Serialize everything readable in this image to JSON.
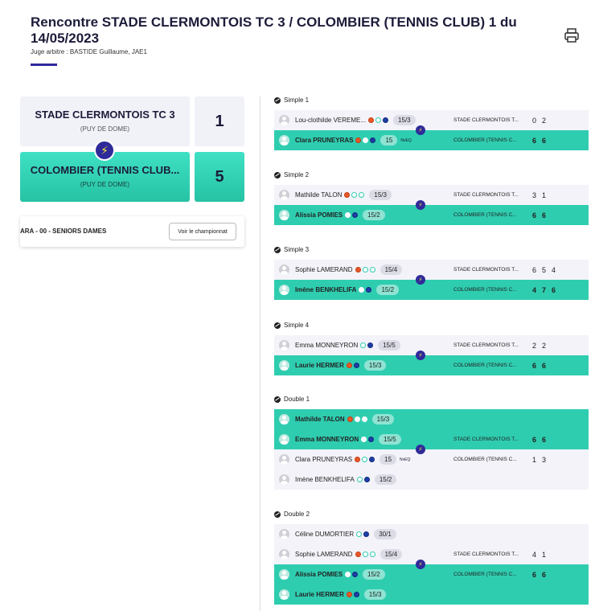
{
  "header": {
    "title": "Rencontre STADE CLERMONTOIS TC 3 / COLOMBIER (TENNIS CLUB) 1 du 14/05/2023",
    "subtitle": "Juge arbitre : BASTIDE Guillaume, JAE1"
  },
  "teams": {
    "home": {
      "name": "STADE CLERMONTOIS TC 3",
      "region": "(PUY DE DOME)",
      "score": "1"
    },
    "away": {
      "name": "COLOMBIER (TENNIS CLUB...",
      "region": "(PUY DE DOME)",
      "score": "5"
    }
  },
  "championship": {
    "label": "ARA - 00 - SENIORS DAMES",
    "button": "Voir le championnat"
  },
  "icons": {
    "print": "printer-icon",
    "winner": "lightning-bolt-icon",
    "sport": "tennis-ball-icon"
  },
  "colors": {
    "accent": "#2fcdb0",
    "brand": "#2f2a9a",
    "bolt": "#f5e43a"
  },
  "matches": [
    {
      "label": "Simple 1",
      "rows": [
        {
          "name": "Lou-clothilde VEREME...",
          "icons": [
            "fire",
            "ring",
            "blue"
          ],
          "rank": "15/3",
          "club": "STADE CLERMONTOIS T...",
          "sets": [
            "0",
            "2"
          ],
          "win": false,
          "extra": ""
        },
        {
          "name": "Clara PRUNEYRAS",
          "icons": [
            "fire",
            "ring",
            "blue"
          ],
          "rank": "15",
          "club": "COLOMBIER (TENNIS C...",
          "sets": [
            "6",
            "6"
          ],
          "win": true,
          "extra": "NvEQ"
        }
      ]
    },
    {
      "label": "Simple 2",
      "rows": [
        {
          "name": "Mathilde TALON",
          "icons": [
            "fire",
            "ring",
            "ring"
          ],
          "rank": "15/3",
          "club": "STADE CLERMONTOIS T...",
          "sets": [
            "3",
            "1"
          ],
          "win": false,
          "extra": ""
        },
        {
          "name": "Alissia POMIES",
          "icons": [
            "ring",
            "blue"
          ],
          "rank": "15/2",
          "club": "COLOMBIER (TENNIS C...",
          "sets": [
            "6",
            "6"
          ],
          "win": true,
          "extra": ""
        }
      ]
    },
    {
      "label": "Simple 3",
      "rows": [
        {
          "name": "Sophie LAMERAND",
          "icons": [
            "fire",
            "ring",
            "ring"
          ],
          "rank": "15/4",
          "club": "STADE CLERMONTOIS T...",
          "sets": [
            "6",
            "5",
            "4"
          ],
          "win": false,
          "extra": ""
        },
        {
          "name": "Imène BENKHELIFA",
          "icons": [
            "ring",
            "blue"
          ],
          "rank": "15/2",
          "club": "COLOMBIER (TENNIS C...",
          "sets": [
            "4",
            "7",
            "6"
          ],
          "win": true,
          "extra": ""
        }
      ]
    },
    {
      "label": "Simple 4",
      "rows": [
        {
          "name": "Emma MONNEYRON",
          "icons": [
            "ring",
            "blue"
          ],
          "rank": "15/5",
          "club": "STADE CLERMONTOIS T...",
          "sets": [
            "2",
            "2"
          ],
          "win": false,
          "extra": ""
        },
        {
          "name": "Laurie HERMER",
          "icons": [
            "fire",
            "blue"
          ],
          "rank": "15/3",
          "club": "COLOMBIER (TENNIS C...",
          "sets": [
            "6",
            "6"
          ],
          "win": true,
          "extra": ""
        }
      ]
    },
    {
      "label": "Double 1",
      "rows": [
        {
          "name": "Mathilde TALON",
          "icons": [
            "fire",
            "ring",
            "ring"
          ],
          "rank": "15/3",
          "club": "",
          "sets": [],
          "win": true,
          "extra": ""
        },
        {
          "name": "Emma MONNEYRON",
          "icons": [
            "ring",
            "blue"
          ],
          "rank": "15/5",
          "club": "STADE CLERMONTOIS T...",
          "sets": [
            "6",
            "6"
          ],
          "win": true,
          "extra": ""
        },
        {
          "name": "Clara PRUNEYRAS",
          "icons": [
            "fire",
            "ring",
            "blue"
          ],
          "rank": "15",
          "club": "COLOMBIER (TENNIS C...",
          "sets": [
            "1",
            "3"
          ],
          "win": false,
          "extra": "NvEQ"
        },
        {
          "name": "Imène BENKHELIFA",
          "icons": [
            "ring",
            "blue"
          ],
          "rank": "15/2",
          "club": "",
          "sets": [],
          "win": false,
          "extra": ""
        }
      ]
    },
    {
      "label": "Double 2",
      "rows": [
        {
          "name": "Céline DUMORTIER",
          "icons": [
            "ring",
            "blue"
          ],
          "rank": "30/1",
          "club": "",
          "sets": [],
          "win": false,
          "extra": ""
        },
        {
          "name": "Sophie LAMERAND",
          "icons": [
            "fire",
            "ring",
            "ring"
          ],
          "rank": "15/4",
          "club": "STADE CLERMONTOIS T...",
          "sets": [
            "4",
            "1"
          ],
          "win": false,
          "extra": ""
        },
        {
          "name": "Alissia POMIES",
          "icons": [
            "ring",
            "blue"
          ],
          "rank": "15/2",
          "club": "COLOMBIER (TENNIS C...",
          "sets": [
            "6",
            "6"
          ],
          "win": true,
          "extra": ""
        },
        {
          "name": "Laurie HERMER",
          "icons": [
            "fire",
            "blue"
          ],
          "rank": "15/3",
          "club": "",
          "sets": [],
          "win": true,
          "extra": ""
        }
      ]
    }
  ]
}
